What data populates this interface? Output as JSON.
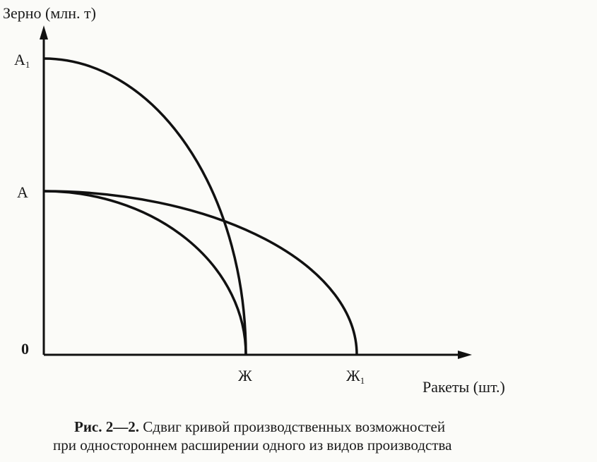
{
  "axes": {
    "y_label": "Зерно (млн. т)",
    "x_label": "Ракеты (шт.)"
  },
  "points": {
    "a1": {
      "label": "A",
      "subscript": "1"
    },
    "a": {
      "label": "A"
    },
    "origin": {
      "label": "0"
    },
    "zh": {
      "label": "Ж"
    },
    "zh1": {
      "label": "Ж",
      "subscript": "1"
    }
  },
  "caption": {
    "figure": "Рис. 2—2.",
    "lines": [
      "Сдвиг кривой производственных возможностей",
      "при одностороннем расширении одного из видов производства"
    ]
  }
}
